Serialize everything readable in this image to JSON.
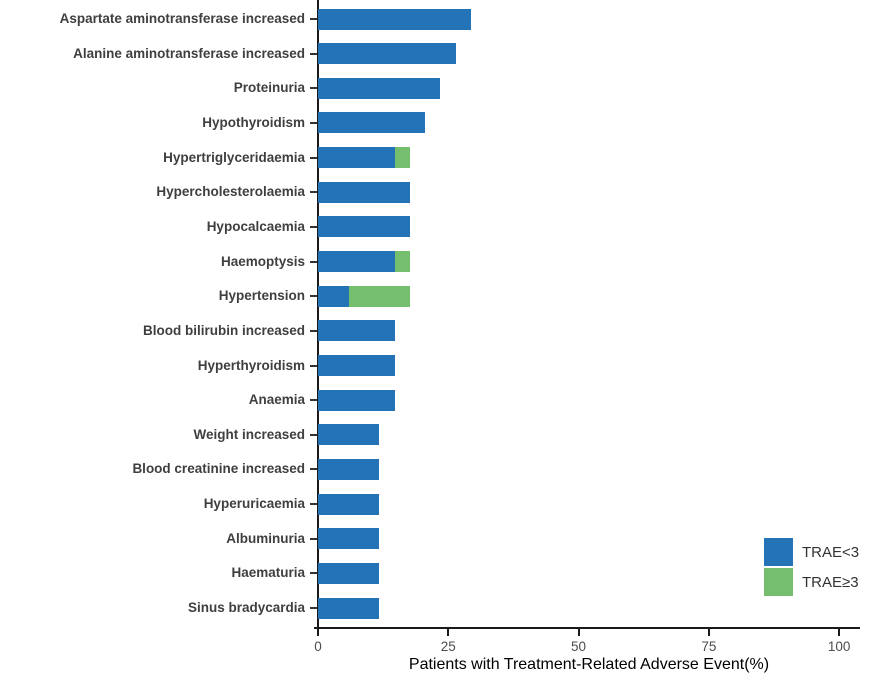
{
  "chart_data": {
    "type": "bar",
    "orientation": "horizontal",
    "stacked": true,
    "title": "",
    "xlabel": "Patients with Treatment-Related Adverse Event(%)",
    "ylabel": "",
    "xlim": [
      0,
      104
    ],
    "xticks": [
      0,
      25,
      50,
      75,
      100
    ],
    "grid": false,
    "legend_position": "right-bottom",
    "categories": [
      "Aspartate aminotransferase increased",
      "Alanine aminotransferase increased",
      "Proteinuria",
      "Hypothyroidism",
      "Hypertriglyceridaemia",
      "Hypercholesterolaemia",
      "Hypocalcaemia",
      "Haemoptysis",
      "Hypertension",
      "Blood bilirubin increased",
      "Hyperthyroidism",
      "Anaemia",
      "Weight increased",
      "Blood creatinine increased",
      "Hyperuricaemia",
      "Albuminuria",
      "Haematuria",
      "Sinus bradycardia"
    ],
    "series": [
      {
        "name": "TRAE<3",
        "color": "#2373B6",
        "values": [
          29.4,
          26.5,
          23.5,
          20.6,
          14.7,
          17.6,
          17.6,
          14.7,
          5.9,
          14.7,
          14.7,
          14.7,
          11.8,
          11.8,
          11.8,
          11.8,
          11.8,
          11.8
        ]
      },
      {
        "name": "TRAE≥3",
        "color": "#74BE6E",
        "values": [
          0,
          0,
          0,
          0,
          2.9,
          0,
          0,
          2.9,
          11.8,
          0,
          0,
          0,
          0,
          0,
          0,
          0,
          0,
          0
        ]
      }
    ],
    "legend": [
      {
        "name": "TRAE<3",
        "color": "#2373B6"
      },
      {
        "name": "TRAE≥3",
        "color": "#74BE6E"
      }
    ]
  },
  "colors": {
    "axis": "#1a1a1a",
    "category_label": "#3f3f3f",
    "tick_label": "#4d4d4d",
    "legend_text": "#333333",
    "background": "#ffffff"
  }
}
